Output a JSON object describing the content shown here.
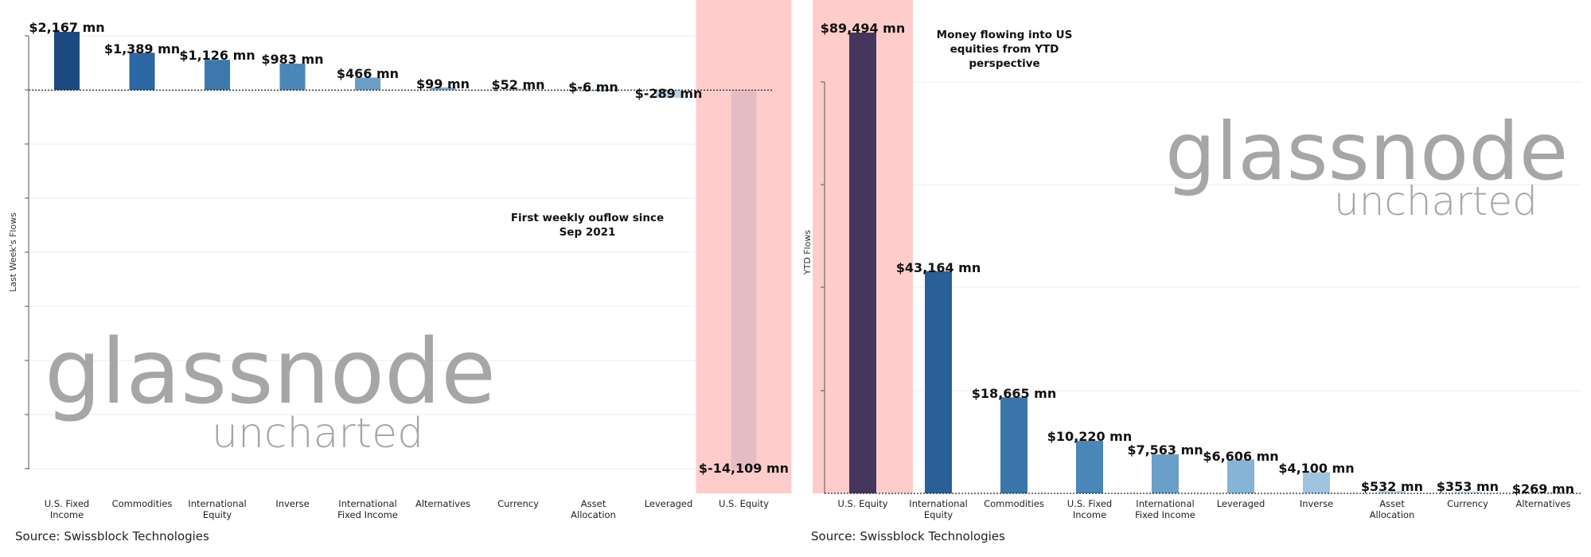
{
  "chart_data": [
    {
      "type": "bar",
      "ylabel": "Last Week's Flows",
      "categories": [
        "U.S. Fixed Income",
        "Commodities",
        "International Equity",
        "Inverse",
        "International Fixed Income",
        "Alternatives",
        "Currency",
        "Asset Allocation",
        "Leveraged",
        "U.S. Equity"
      ],
      "category_lines": [
        [
          "U.S. Fixed",
          "Income"
        ],
        [
          "Commodities"
        ],
        [
          "International",
          "Equity"
        ],
        [
          "Inverse"
        ],
        [
          "International",
          "Fixed Income"
        ],
        [
          "Alternatives"
        ],
        [
          "Currency"
        ],
        [
          "Asset",
          "Allocation"
        ],
        [
          "Leveraged"
        ],
        [
          "U.S. Equity"
        ]
      ],
      "values": [
        2167,
        1389,
        1126,
        983,
        466,
        99,
        52,
        -6,
        -289,
        -14109
      ],
      "value_labels": [
        "$2,167 mn",
        "$1,389 mn",
        "$1,126 mn",
        "$983 mn",
        "$466 mn",
        "$99 mn",
        "$52 mn",
        "$-6 mn",
        "$-289 mn",
        "$-14,109 mn"
      ],
      "bar_colors": [
        "#1c4a80",
        "#2a67a3",
        "#3c78ad",
        "#4a86b8",
        "#6a9ec6",
        "#7aabcf",
        "#88b4d4",
        "#9ec3dc",
        "#b9d3e6",
        "#e6bcc4"
      ],
      "highlight_category": "U.S. Equity",
      "annotation": [
        "First weekly ouflow since",
        "Sep 2021"
      ],
      "ylim": [
        -14109,
        2167
      ],
      "grid": true,
      "source": "Source: Swissblock Technologies",
      "watermark": {
        "line1": "glassnode",
        "line2": "uncharted"
      }
    },
    {
      "type": "bar",
      "ylabel": "YTD Flows",
      "categories": [
        "U.S. Equity",
        "International Equity",
        "Commodities",
        "U.S. Fixed Income",
        "International Fixed Income",
        "Leveraged",
        "Inverse",
        "Asset Allocation",
        "Currency",
        "Alternatives"
      ],
      "category_lines": [
        [
          "U.S. Equity"
        ],
        [
          "International",
          "Equity"
        ],
        [
          "Commodities"
        ],
        [
          "U.S. Fixed",
          "Income"
        ],
        [
          "International",
          "Fixed Income"
        ],
        [
          "Leveraged"
        ],
        [
          "Inverse"
        ],
        [
          "Asset",
          "Allocation"
        ],
        [
          "Currency"
        ],
        [
          "Alternatives"
        ]
      ],
      "values": [
        89494,
        43164,
        18665,
        10220,
        7563,
        6606,
        4100,
        532,
        353,
        269
      ],
      "value_labels": [
        "$89,494 mn",
        "$43,164 mn",
        "$18,665 mn",
        "$10,220 mn",
        "$7,563 mn",
        "$6,606 mn",
        "$4,100 mn",
        "$532 mn",
        "$353 mn",
        "$269 mn"
      ],
      "bar_colors": [
        "#45365e",
        "#2a5f97",
        "#3a76aa",
        "#4a86b8",
        "#6a9fc8",
        "#86b4d6",
        "#9fc4df",
        "#b5d2e8",
        "#c4dbee",
        "#cfe2f2"
      ],
      "highlight_category": "U.S. Equity",
      "annotation": [
        "Money flowing into US",
        "equities from YTD",
        "perspective"
      ],
      "ylim": [
        0,
        89494
      ],
      "grid": true,
      "source": "Source: Swissblock Technologies",
      "watermark": {
        "line1": "glassnode",
        "line2": "uncharted"
      }
    }
  ]
}
